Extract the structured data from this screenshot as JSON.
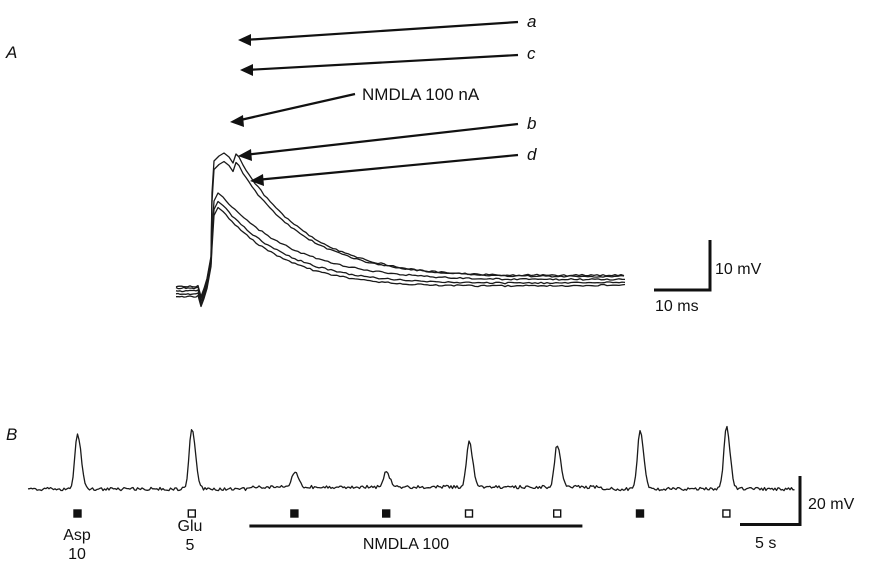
{
  "chart_data": [
    {
      "type": "line",
      "panel_label": "A",
      "annotations": [
        {
          "id": "a",
          "text": "a",
          "italic": true
        },
        {
          "id": "c",
          "text": "c",
          "italic": true
        },
        {
          "id": "nmdla",
          "text": "NMDLA 100 nA",
          "italic": false
        },
        {
          "id": "b",
          "text": "b",
          "italic": true
        },
        {
          "id": "d",
          "text": "d",
          "italic": true
        }
      ],
      "scale_bar": {
        "vertical_label": "10 mV",
        "horizontal_label": "10 ms"
      },
      "series": [
        {
          "name": "a",
          "peak_mV": 27.0,
          "double_peak": true,
          "tau_ms": 13.5,
          "baseline_mV": 0.0
        },
        {
          "name": "c",
          "peak_mV": 25.3,
          "double_peak": true,
          "tau_ms": 13.0,
          "baseline_mV": 0.3
        },
        {
          "name": "NMDLA 100 nA",
          "peak_mV": 19.0,
          "double_peak": false,
          "tau_ms": 14.5,
          "baseline_mV": -0.6
        },
        {
          "name": "b",
          "peak_mV": 17.3,
          "double_peak": false,
          "tau_ms": 13.0,
          "baseline_mV": -1.2
        },
        {
          "name": "d",
          "peak_mV": 16.1,
          "double_peak": false,
          "tau_ms": 12.5,
          "baseline_mV": -1.7
        }
      ]
    },
    {
      "type": "line",
      "panel_label": "B",
      "scale_bar": {
        "vertical_label": "20 mV",
        "horizontal_label": "5 s"
      },
      "application_bar_label": "NMDLA 100",
      "markers": [
        {
          "symbol": "filled",
          "label": "Asp",
          "dose": "10",
          "time_s": 2.75
        },
        {
          "symbol": "open",
          "label": "Glu",
          "dose": "5",
          "time_s": 9.1
        },
        {
          "symbol": "filled",
          "label": "",
          "dose": "",
          "time_s": 14.8
        },
        {
          "symbol": "filled",
          "label": "",
          "dose": "",
          "time_s": 19.9
        },
        {
          "symbol": "open",
          "label": "",
          "dose": "",
          "time_s": 24.5
        },
        {
          "symbol": "open",
          "label": "",
          "dose": "",
          "time_s": 29.4
        },
        {
          "symbol": "filled",
          "label": "",
          "dose": "",
          "time_s": 34.0
        },
        {
          "symbol": "open",
          "label": "",
          "dose": "",
          "time_s": 38.8
        }
      ],
      "application_bar_s": [
        12.3,
        30.8
      ],
      "responses_mV": [
        {
          "time_s": 2.75,
          "amplitude_mV": 22
        },
        {
          "time_s": 9.1,
          "amplitude_mV": 24
        },
        {
          "time_s": 14.8,
          "amplitude_mV": 6
        },
        {
          "time_s": 19.9,
          "amplitude_mV": 6
        },
        {
          "time_s": 24.5,
          "amplitude_mV": 18
        },
        {
          "time_s": 29.4,
          "amplitude_mV": 17
        },
        {
          "time_s": 34.0,
          "amplitude_mV": 23
        },
        {
          "time_s": 38.8,
          "amplitude_mV": 25
        }
      ]
    }
  ]
}
